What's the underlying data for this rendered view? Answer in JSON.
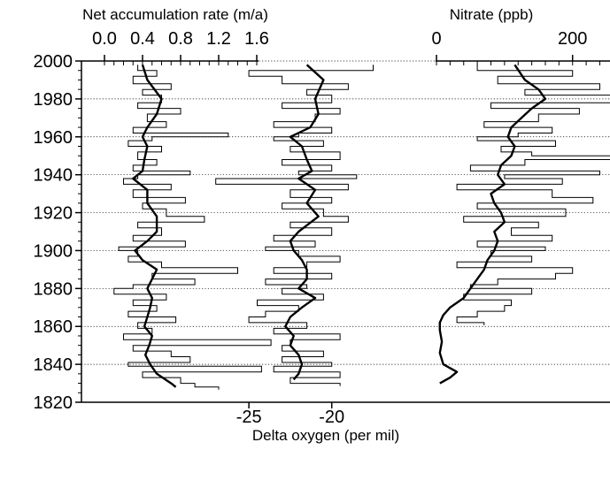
{
  "chart_data": {
    "type": "line",
    "y_axis": {
      "ticks": [
        2000,
        1980,
        1960,
        1940,
        1920,
        1900,
        1880,
        1860,
        1840,
        1820
      ],
      "ylim": [
        1820,
        2000
      ],
      "grid": "dotted horizontal at every 20 years"
    },
    "panels": [
      {
        "id": "accumulation",
        "axis_label": "Net accumulation rate (m/a)",
        "axis_position": "top",
        "xlim": [
          0.0,
          1.6
        ],
        "ticks": [
          "0.0",
          "0.4",
          "0.8",
          "1.2",
          "1.6"
        ],
        "tick_values": [
          0.0,
          0.4,
          0.8,
          1.2,
          1.6
        ],
        "smooth_series": {
          "y": [
            1998,
            1990,
            1980,
            1972,
            1965,
            1960,
            1955,
            1948,
            1942,
            1938,
            1932,
            1925,
            1918,
            1910,
            1905,
            1900,
            1895,
            1890,
            1885,
            1880,
            1875,
            1870,
            1865,
            1860,
            1855,
            1850,
            1845,
            1840,
            1835,
            1830,
            1828
          ],
          "x": [
            0.4,
            0.45,
            0.6,
            0.55,
            0.45,
            0.4,
            0.45,
            0.42,
            0.4,
            0.3,
            0.45,
            0.45,
            0.55,
            0.55,
            0.45,
            0.32,
            0.4,
            0.55,
            0.5,
            0.45,
            0.5,
            0.48,
            0.45,
            0.42,
            0.5,
            0.47,
            0.43,
            0.48,
            0.55,
            0.7,
            0.75
          ]
        },
        "annual_series": {
          "y": [
            1998,
            1995,
            1992,
            1988,
            1985,
            1982,
            1978,
            1975,
            1972,
            1968,
            1965,
            1962,
            1960,
            1958,
            1955,
            1952,
            1948,
            1945,
            1942,
            1940,
            1938,
            1935,
            1932,
            1928,
            1925,
            1922,
            1918,
            1915,
            1912,
            1908,
            1905,
            1902,
            1900,
            1897,
            1894,
            1891,
            1888,
            1885,
            1882,
            1880,
            1877,
            1874,
            1871,
            1868,
            1865,
            1862,
            1859,
            1856,
            1853,
            1850,
            1847,
            1844,
            1841,
            1839,
            1836,
            1833,
            1830,
            1828
          ],
          "x": [
            0.35,
            0.55,
            0.3,
            0.7,
            0.4,
            0.6,
            0.35,
            0.8,
            0.45,
            0.65,
            0.3,
            1.3,
            0.5,
            0.25,
            0.6,
            0.35,
            0.55,
            0.3,
            0.9,
            0.35,
            0.2,
            0.7,
            0.3,
            0.85,
            0.4,
            0.65,
            1.05,
            0.35,
            0.6,
            0.3,
            0.85,
            0.15,
            0.35,
            0.25,
            0.6,
            1.4,
            0.5,
            0.95,
            0.3,
            0.1,
            0.65,
            0.3,
            0.55,
            0.25,
            0.75,
            0.35,
            0.5,
            0.2,
            1.75,
            0.3,
            0.7,
            0.9,
            0.25,
            1.65,
            0.4,
            0.8,
            0.95,
            1.2
          ]
        }
      },
      {
        "id": "delta_oxygen",
        "axis_label": "Delta oxygen (per mil)",
        "axis_position": "bottom",
        "xlim": [
          -28,
          -14
        ],
        "ticks": [
          "-25",
          "-20"
        ],
        "tick_values": [
          -25,
          -20
        ],
        "smooth_series": {
          "y": [
            1998,
            1990,
            1980,
            1972,
            1965,
            1960,
            1955,
            1948,
            1942,
            1938,
            1932,
            1925,
            1918,
            1910,
            1905,
            1900,
            1895,
            1890,
            1885,
            1880,
            1875,
            1870,
            1865,
            1860,
            1855,
            1850,
            1845,
            1840,
            1835,
            1832
          ],
          "x": [
            -21.5,
            -20.5,
            -21.0,
            -20.8,
            -21.3,
            -22.5,
            -21.8,
            -21.5,
            -21.2,
            -22.0,
            -21.0,
            -21.5,
            -20.8,
            -22.0,
            -22.5,
            -22.3,
            -21.8,
            -21.5,
            -21.5,
            -22.0,
            -21.0,
            -21.8,
            -22.5,
            -22.8,
            -22.3,
            -22.5,
            -22.0,
            -21.8,
            -22.0,
            -22.3
          ]
        },
        "annual_series": {
          "y": [
            1998,
            1995,
            1992,
            1988,
            1985,
            1982,
            1978,
            1975,
            1972,
            1968,
            1965,
            1962,
            1960,
            1958,
            1955,
            1952,
            1948,
            1945,
            1942,
            1940,
            1938,
            1935,
            1932,
            1928,
            1925,
            1922,
            1918,
            1915,
            1912,
            1908,
            1905,
            1902,
            1900,
            1897,
            1894,
            1891,
            1888,
            1885,
            1882,
            1880,
            1877,
            1874,
            1871,
            1868,
            1865,
            1862,
            1859,
            1856,
            1853,
            1850,
            1847,
            1844,
            1841,
            1839,
            1836,
            1833,
            1830
          ],
          "x": [
            -17.5,
            -25.0,
            -23.0,
            -19.0,
            -21.5,
            -20.0,
            -23.0,
            -19.5,
            -21.0,
            -23.5,
            -20.0,
            -22.0,
            -23.5,
            -20.5,
            -22.5,
            -19.5,
            -23.0,
            -20.0,
            -22.0,
            -18.5,
            -27.0,
            -19.0,
            -22.5,
            -20.0,
            -23.0,
            -20.5,
            -19.0,
            -22.5,
            -20.0,
            -23.5,
            -21.0,
            -24.0,
            -22.0,
            -19.5,
            -21.5,
            -23.5,
            -20.0,
            -24.0,
            -21.5,
            -23.0,
            -20.5,
            -24.5,
            -22.0,
            -24.0,
            -25.0,
            -21.5,
            -23.5,
            -19.5,
            -22.5,
            -23.0,
            -20.5,
            -23.0,
            -20.0,
            -23.5,
            -19.5,
            -22.5,
            -19.5
          ]
        }
      },
      {
        "id": "nitrate",
        "axis_label": "Nitrate (ppb)",
        "axis_position": "top",
        "xlim": [
          0,
          255
        ],
        "ticks": [
          "0",
          "200"
        ],
        "tick_values": [
          0,
          200
        ],
        "smooth_series": {
          "y": [
            1998,
            1990,
            1985,
            1980,
            1975,
            1970,
            1965,
            1960,
            1955,
            1950,
            1945,
            1940,
            1935,
            1930,
            1925,
            1920,
            1915,
            1910,
            1905,
            1900,
            1895,
            1890,
            1885,
            1880,
            1875,
            1870,
            1866,
            1862,
            1858,
            1852,
            1846,
            1840,
            1836,
            1833,
            1830
          ],
          "x": [
            115,
            130,
            150,
            160,
            140,
            125,
            110,
            105,
            115,
            110,
            95,
            90,
            100,
            80,
            85,
            95,
            100,
            85,
            90,
            85,
            75,
            70,
            60,
            50,
            40,
            20,
            10,
            5,
            5,
            8,
            5,
            10,
            30,
            20,
            5
          ]
        },
        "annual_series": {
          "y": [
            1998,
            1995,
            1992,
            1988,
            1985,
            1982,
            1978,
            1975,
            1972,
            1968,
            1965,
            1962,
            1960,
            1958,
            1955,
            1952,
            1950,
            1948,
            1945,
            1942,
            1940,
            1938,
            1935,
            1932,
            1928,
            1925,
            1922,
            1918,
            1915,
            1912,
            1908,
            1905,
            1902,
            1900,
            1897,
            1894,
            1891,
            1888,
            1885,
            1882,
            1880,
            1877,
            1874,
            1871,
            1868,
            1865,
            1862
          ],
          "x": [
            60,
            200,
            90,
            240,
            130,
            260,
            80,
            210,
            150,
            70,
            170,
            120,
            60,
            175,
            95,
            140,
            260,
            130,
            50,
            240,
            100,
            185,
            30,
            170,
            230,
            60,
            190,
            40,
            150,
            110,
            170,
            60,
            160,
            80,
            140,
            30,
            200,
            175,
            90,
            50,
            140,
            40,
            110,
            100,
            60,
            30,
            70
          ]
        }
      }
    ]
  }
}
